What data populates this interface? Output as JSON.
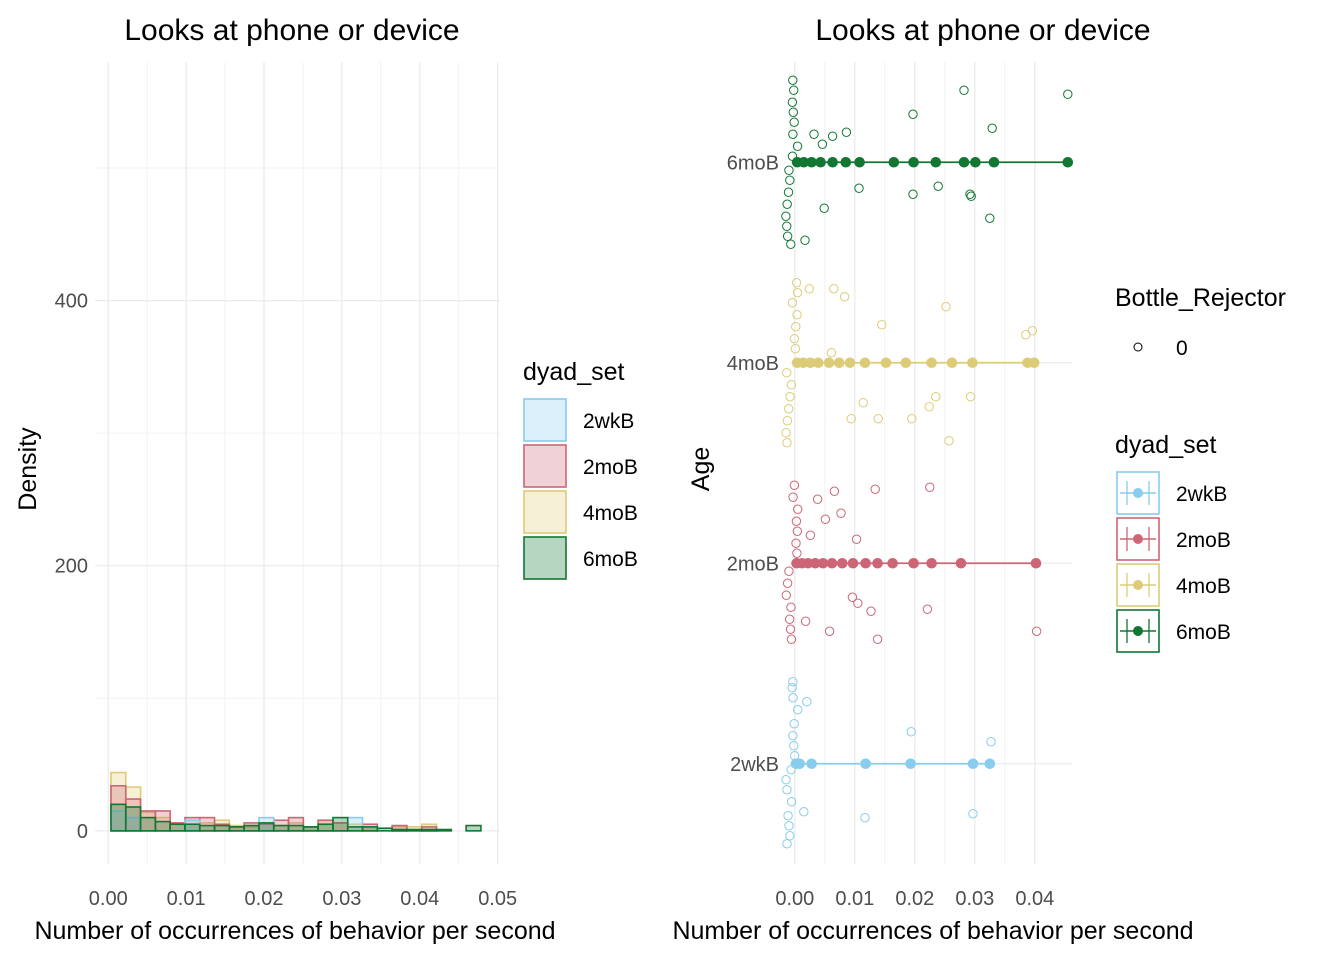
{
  "chart_data": [
    {
      "type": "histogram",
      "title": "Looks at phone or device",
      "xlabel": "Number of occurrences of behavior per second",
      "ylabel": "Density",
      "xlim": [
        -0.0017,
        0.0503
      ],
      "ylim": [
        -25,
        580
      ],
      "x_ticks": [
        "0.00",
        "0.01",
        "0.02",
        "0.03",
        "0.04",
        "0.05"
      ],
      "x_tick_values": [
        0,
        0.01,
        0.02,
        0.03,
        0.04,
        0.05
      ],
      "y_ticks": [
        "0",
        "200",
        "400"
      ],
      "y_tick_values": [
        0,
        200,
        400
      ],
      "bin_width": 0.0019,
      "grid": true,
      "legend": {
        "title": "dyad_set",
        "placement": "right",
        "items": [
          "2wkB",
          "2moB",
          "4moB",
          "6moB"
        ]
      },
      "series": [
        {
          "name": "4moB",
          "line_color": "#DDCC77",
          "fill_color": "#DDCC77",
          "bins": [
            [
              0.0013,
              44
            ],
            [
              0.0032,
              33
            ],
            [
              0.0051,
              14
            ],
            [
              0.007,
              10
            ],
            [
              0.0089,
              6
            ],
            [
              0.0108,
              5
            ],
            [
              0.0127,
              6
            ],
            [
              0.0146,
              8
            ],
            [
              0.0165,
              4
            ],
            [
              0.0184,
              3
            ],
            [
              0.0203,
              5
            ],
            [
              0.0222,
              4
            ],
            [
              0.0241,
              6
            ],
            [
              0.026,
              3
            ],
            [
              0.0279,
              8
            ],
            [
              0.0298,
              6
            ],
            [
              0.0317,
              5
            ],
            [
              0.0336,
              3
            ],
            [
              0.0374,
              3
            ],
            [
              0.0393,
              3
            ],
            [
              0.0412,
              5
            ]
          ]
        },
        {
          "name": "2moB",
          "line_color": "#CC6677",
          "fill_color": "#CC6677",
          "bins": [
            [
              0.0013,
              34
            ],
            [
              0.0032,
              24
            ],
            [
              0.0051,
              15
            ],
            [
              0.007,
              15
            ],
            [
              0.0089,
              6
            ],
            [
              0.0108,
              10
            ],
            [
              0.0127,
              10
            ],
            [
              0.0146,
              5
            ],
            [
              0.0165,
              3
            ],
            [
              0.0184,
              6
            ],
            [
              0.0203,
              5
            ],
            [
              0.0222,
              8
            ],
            [
              0.0241,
              10
            ],
            [
              0.026,
              3
            ],
            [
              0.0279,
              8
            ],
            [
              0.0298,
              6
            ],
            [
              0.0336,
              5
            ],
            [
              0.0374,
              4
            ],
            [
              0.0412,
              3
            ]
          ]
        },
        {
          "name": "2wkB",
          "line_color": "#88CCEE",
          "fill_color": "#88CCEE",
          "bins": [
            [
              0.0013,
              15
            ],
            [
              0.0032,
              10
            ],
            [
              0.0108,
              8
            ],
            [
              0.0203,
              10
            ],
            [
              0.0317,
              10
            ]
          ]
        },
        {
          "name": "6moB",
          "line_color": "#117733",
          "fill_color": "#117733",
          "bins": [
            [
              0.0013,
              20
            ],
            [
              0.0032,
              18
            ],
            [
              0.0051,
              10
            ],
            [
              0.007,
              7
            ],
            [
              0.0089,
              5
            ],
            [
              0.0108,
              5
            ],
            [
              0.0127,
              4
            ],
            [
              0.0146,
              4
            ],
            [
              0.0165,
              3
            ],
            [
              0.0184,
              4
            ],
            [
              0.0203,
              6
            ],
            [
              0.0222,
              4
            ],
            [
              0.0241,
              4
            ],
            [
              0.026,
              3
            ],
            [
              0.0279,
              5
            ],
            [
              0.0298,
              10
            ],
            [
              0.0317,
              3
            ],
            [
              0.0336,
              3
            ],
            [
              0.0355,
              2
            ],
            [
              0.0374,
              1
            ],
            [
              0.0393,
              1
            ],
            [
              0.0412,
              1
            ],
            [
              0.0431,
              1
            ],
            [
              0.0469,
              4
            ]
          ]
        }
      ]
    },
    {
      "type": "scatter",
      "title": "Looks at phone or device",
      "xlabel": "Number of occurrences of behavior per second",
      "ylabel": "Age",
      "xlim": [
        -0.0008,
        0.0462
      ],
      "x_ticks": [
        "0.00",
        "0.01",
        "0.02",
        "0.03",
        "0.04"
      ],
      "x_tick_values": [
        0,
        0.01,
        0.02,
        0.03,
        0.04
      ],
      "categories": [
        "2wkB",
        "2moB",
        "4moB",
        "6moB"
      ],
      "grid": true,
      "legend": [
        {
          "title": "Bottle_Rejector",
          "placement": "right",
          "items": [
            "0"
          ]
        },
        {
          "title": "dyad_set",
          "placement": "right",
          "items": [
            "2wkB",
            "2moB",
            "4moB",
            "6moB"
          ]
        }
      ],
      "series": [
        {
          "name": "2wkB",
          "color": "#88CCEE",
          "mean_points": [
            0.0002,
            0.0008,
            0.0028,
            0.0118,
            0.0193,
            0.0297,
            0.0325
          ],
          "range": [
            0,
            0.0325
          ],
          "jittered_points": [
            [
              0.002,
              0.31
            ],
            [
              0.0194,
              0.16
            ],
            [
              0.0327,
              0.11
            ],
            [
              0.0015,
              -0.24
            ],
            [
              0.0117,
              -0.27
            ],
            [
              0.0297,
              -0.25
            ],
            [
              0,
              0.41
            ],
            [
              0,
              0.38
            ],
            [
              0,
              0.33
            ],
            [
              0,
              0.27
            ],
            [
              0,
              0.2
            ],
            [
              0,
              0.14
            ],
            [
              0,
              0.09
            ],
            [
              0,
              0.04
            ],
            [
              0,
              -0.03
            ],
            [
              0,
              -0.08
            ],
            [
              0,
              -0.13
            ],
            [
              0,
              -0.19
            ],
            [
              0,
              -0.26
            ],
            [
              0,
              -0.31
            ],
            [
              0,
              -0.36
            ],
            [
              0,
              -0.4
            ]
          ]
        },
        {
          "name": "2moB",
          "color": "#CC6677",
          "mean_points": [
            0.0003,
            0.0012,
            0.0022,
            0.0034,
            0.0047,
            0.0062,
            0.0079,
            0.0097,
            0.0118,
            0.0138,
            0.0163,
            0.0198,
            0.0228,
            0.0277,
            0.0402
          ],
          "range": [
            0,
            0.0402
          ],
          "jittered_points": [
            [
              0.0066,
              0.36
            ],
            [
              0.0134,
              0.37
            ],
            [
              0.0225,
              0.38
            ],
            [
              0.0038,
              0.32
            ],
            [
              0.0077,
              0.25
            ],
            [
              0.0051,
              0.22
            ],
            [
              0.0103,
              0.12
            ],
            [
              0.0026,
              0.14
            ],
            [
              0.0096,
              -0.17
            ],
            [
              0.0105,
              -0.2
            ],
            [
              0.0221,
              -0.23
            ],
            [
              0.0127,
              -0.24
            ],
            [
              0.0058,
              -0.34
            ],
            [
              0.0138,
              -0.38
            ],
            [
              0.0403,
              -0.34
            ],
            [
              0.0018,
              -0.29
            ],
            [
              0,
              0.39
            ],
            [
              0,
              0.33
            ],
            [
              0,
              0.27
            ],
            [
              0,
              0.21
            ],
            [
              0,
              0.16
            ],
            [
              0,
              0.1
            ],
            [
              0,
              0.05
            ],
            [
              0,
              -0.04
            ],
            [
              0,
              -0.1
            ],
            [
              0,
              -0.16
            ],
            [
              0,
              -0.22
            ],
            [
              0,
              -0.28
            ],
            [
              0,
              -0.33
            ],
            [
              0,
              -0.38
            ]
          ]
        },
        {
          "name": "4moB",
          "color": "#DDCC77",
          "mean_points": [
            0.0004,
            0.0014,
            0.0026,
            0.0039,
            0.0057,
            0.0074,
            0.0092,
            0.0117,
            0.0152,
            0.0185,
            0.0228,
            0.0262,
            0.0296,
            0.0388,
            0.0399
          ],
          "range": [
            0,
            0.0399
          ],
          "jittered_points": [
            [
              0.0024,
              0.37
            ],
            [
              0.0065,
              0.37
            ],
            [
              0.0083,
              0.33
            ],
            [
              0.0252,
              0.28
            ],
            [
              0.0145,
              0.19
            ],
            [
              0.0396,
              0.16
            ],
            [
              0.0385,
              0.14
            ],
            [
              0.0061,
              0.05
            ],
            [
              0.0235,
              -0.17
            ],
            [
              0.0293,
              -0.17
            ],
            [
              0.0114,
              -0.2
            ],
            [
              0.0224,
              -0.22
            ],
            [
              0.0139,
              -0.28
            ],
            [
              0.0094,
              -0.28
            ],
            [
              0.0195,
              -0.28
            ],
            [
              0.0257,
              -0.39
            ],
            [
              0,
              0.4
            ],
            [
              0,
              0.35
            ],
            [
              0,
              0.3
            ],
            [
              0,
              0.24
            ],
            [
              0,
              0.18
            ],
            [
              0,
              0.12
            ],
            [
              0,
              0.07
            ],
            [
              0,
              -0.05
            ],
            [
              0,
              -0.11
            ],
            [
              0,
              -0.17
            ],
            [
              0,
              -0.23
            ],
            [
              0,
              -0.29
            ],
            [
              0,
              -0.35
            ],
            [
              0,
              -0.4
            ]
          ]
        },
        {
          "name": "6moB",
          "color": "#117733",
          "mean_points": [
            0.0004,
            0.0015,
            0.0028,
            0.0043,
            0.0063,
            0.0085,
            0.0108,
            0.0165,
            0.0198,
            0.0235,
            0.0282,
            0.0301,
            0.0332,
            0.0455
          ],
          "range": [
            0,
            0.0455
          ],
          "jittered_points": [
            [
              0.0282,
              0.36
            ],
            [
              0.0455,
              0.34
            ],
            [
              0.0197,
              0.24
            ],
            [
              0.0329,
              0.17
            ],
            [
              0.0032,
              0.14
            ],
            [
              0.0063,
              0.13
            ],
            [
              0.0086,
              0.15
            ],
            [
              0.0046,
              0.09
            ],
            [
              0.0107,
              -0.13
            ],
            [
              0.0197,
              -0.16
            ],
            [
              0.0292,
              -0.16
            ],
            [
              0.0239,
              -0.12
            ],
            [
              0.0294,
              -0.17
            ],
            [
              0.0049,
              -0.23
            ],
            [
              0.0325,
              -0.28
            ],
            [
              0.0017,
              -0.39
            ],
            [
              0,
              0.41
            ],
            [
              0,
              0.36
            ],
            [
              0,
              0.3
            ],
            [
              0,
              0.25
            ],
            [
              0,
              0.2
            ],
            [
              0,
              0.14
            ],
            [
              0,
              0.08
            ],
            [
              0,
              0.03
            ],
            [
              0,
              -0.04
            ],
            [
              0,
              -0.09
            ],
            [
              0,
              -0.15
            ],
            [
              0,
              -0.21
            ],
            [
              0,
              -0.27
            ],
            [
              0,
              -0.32
            ],
            [
              0,
              -0.37
            ],
            [
              0,
              -0.41
            ]
          ]
        }
      ]
    }
  ]
}
